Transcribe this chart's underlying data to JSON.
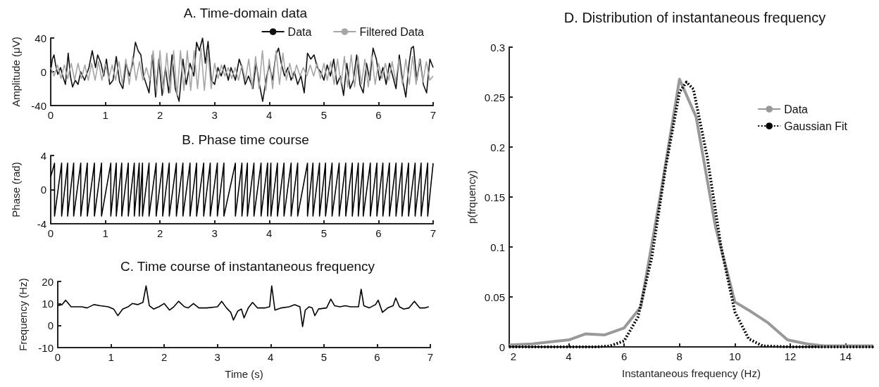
{
  "chart_data": [
    {
      "type": "line",
      "title": "A. Time-domain data",
      "ylabel": "Amplitude (μV)",
      "xlim": [
        0,
        7
      ],
      "xticks": [
        0,
        1,
        2,
        3,
        4,
        5,
        6,
        7
      ],
      "ylim": [
        -40,
        40
      ],
      "yticks": [
        -40,
        0,
        40
      ],
      "legend": "top",
      "series": [
        {
          "name": "Data",
          "color": "#111111",
          "x": [
            0,
            0.03,
            0.06,
            0.09,
            0.13,
            0.18,
            0.22,
            0.27,
            0.32,
            0.36,
            0.4,
            0.45,
            0.5,
            0.55,
            0.62,
            0.7,
            0.76,
            0.82,
            0.86,
            0.92,
            0.97,
            1.02,
            1.08,
            1.14,
            1.2,
            1.26,
            1.32,
            1.38,
            1.44,
            1.5,
            1.55,
            1.6,
            1.65,
            1.7,
            1.75,
            1.8,
            1.86,
            1.92,
            1.98,
            2.04,
            2.1,
            2.16,
            2.22,
            2.28,
            2.35,
            2.42,
            2.48,
            2.55,
            2.62,
            2.67,
            2.72,
            2.78,
            2.83,
            2.88,
            2.94,
            3.0,
            3.06,
            3.12,
            3.18,
            3.25,
            3.3,
            3.38,
            3.45,
            3.5,
            3.56,
            3.62,
            3.7,
            3.76,
            3.82,
            3.88,
            3.94,
            4.0,
            4.06,
            4.12,
            4.17,
            4.22,
            4.28,
            4.34,
            4.4,
            4.46,
            4.52,
            4.58,
            4.64,
            4.7,
            4.76,
            4.82,
            4.88,
            4.94,
            5.0,
            5.06,
            5.12,
            5.18,
            5.24,
            5.3,
            5.36,
            5.42,
            5.48,
            5.54,
            5.6,
            5.66,
            5.72,
            5.78,
            5.84,
            5.9,
            5.96,
            6.02,
            6.08,
            6.14,
            6.2,
            6.26,
            6.32,
            6.38,
            6.44,
            6.5,
            6.56,
            6.6,
            6.64,
            6.7,
            6.76,
            6.82,
            6.88,
            6.94,
            7.0
          ],
          "values": [
            0,
            15,
            20,
            8,
            -3,
            5,
            -5,
            -15,
            22,
            -5,
            -18,
            -10,
            -15,
            0,
            -10,
            5,
            25,
            5,
            20,
            10,
            -5,
            15,
            -15,
            -10,
            18,
            -12,
            -20,
            10,
            -5,
            10,
            35,
            25,
            20,
            -5,
            -15,
            -25,
            20,
            -30,
            15,
            -28,
            5,
            -25,
            20,
            -20,
            -35,
            15,
            -15,
            10,
            -5,
            35,
            25,
            40,
            10,
            36,
            -10,
            -15,
            5,
            -5,
            8,
            -10,
            5,
            -10,
            15,
            5,
            -15,
            -5,
            -20,
            10,
            -15,
            -35,
            -10,
            8,
            -10,
            20,
            28,
            10,
            -5,
            5,
            -10,
            0,
            -15,
            -5,
            -25,
            22,
            15,
            20,
            5,
            0,
            -10,
            8,
            -5,
            15,
            -15,
            -5,
            -28,
            10,
            -20,
            -10,
            20,
            -15,
            -25,
            10,
            -10,
            28,
            15,
            -10,
            5,
            -15,
            10,
            -5,
            -20,
            20,
            -10,
            -30,
            10,
            28,
            30,
            -10,
            15,
            -15,
            -25,
            15,
            5
          ]
        },
        {
          "name": "Filtered Data",
          "color": "#a6a6a6",
          "x": [
            0,
            0.0625,
            0.125,
            0.1875,
            0.25,
            0.3125,
            0.375,
            0.4375,
            0.5,
            0.5625,
            0.625,
            0.6875,
            0.75,
            0.8125,
            0.875,
            0.9375,
            1,
            1.0625,
            1.125,
            1.1875,
            1.25,
            1.3125,
            1.375,
            1.4375,
            1.5,
            1.5625,
            1.625,
            1.6875,
            1.75,
            1.8125,
            1.875,
            1.9375,
            2,
            2.0625,
            2.125,
            2.1875,
            2.25,
            2.3125,
            2.375,
            2.4375,
            2.5,
            2.5625,
            2.625,
            2.6875,
            2.75,
            2.8125,
            2.875,
            2.9375,
            3,
            3.0625,
            3.125,
            3.1875,
            3.25,
            3.3125,
            3.375,
            3.4375,
            3.5,
            3.5625,
            3.625,
            3.6875,
            3.75,
            3.8125,
            3.875,
            3.9375,
            4,
            4.0625,
            4.125,
            4.1875,
            4.25,
            4.3125,
            4.375,
            4.4375,
            4.5,
            4.5625,
            4.625,
            4.6875,
            4.75,
            4.8125,
            4.875,
            4.9375,
            5,
            5.0625,
            5.125,
            5.1875,
            5.25,
            5.3125,
            5.375,
            5.4375,
            5.5,
            5.5625,
            5.625,
            5.6875,
            5.75,
            5.8125,
            5.875,
            5.9375,
            6,
            6.0625,
            6.125,
            6.1875,
            6.25,
            6.3125,
            6.375,
            6.4375,
            6.5,
            6.5625,
            6.625,
            6.6875,
            6.75,
            6.8125,
            6.875,
            6.9375,
            7
          ],
          "values": [
            5,
            -5,
            8,
            -8,
            8,
            -8,
            10,
            -10,
            10,
            -8,
            8,
            -10,
            10,
            -10,
            12,
            -10,
            10,
            -8,
            8,
            -10,
            12,
            -15,
            15,
            -15,
            18,
            -10,
            12,
            -10,
            5,
            -10,
            25,
            -25,
            25,
            -25,
            22,
            -25,
            25,
            -28,
            25,
            -22,
            25,
            -22,
            25,
            -20,
            28,
            -22,
            25,
            -20,
            10,
            -8,
            8,
            -5,
            5,
            -8,
            5,
            -10,
            8,
            -10,
            15,
            -20,
            18,
            -20,
            25,
            -22,
            15,
            -20,
            25,
            -15,
            22,
            -10,
            10,
            -8,
            8,
            -5,
            5,
            -5,
            8,
            -5,
            10,
            -8,
            10,
            -10,
            12,
            -15,
            15,
            -15,
            18,
            -18,
            20,
            -18,
            18,
            -15,
            15,
            -18,
            20,
            -15,
            10,
            -8,
            10,
            -10,
            12,
            -12,
            15,
            -15,
            15,
            -15,
            18,
            -15,
            15,
            -12,
            12,
            -10,
            -5
          ]
        }
      ]
    },
    {
      "type": "line",
      "title": "B. Phase time course",
      "ylabel": "Phase (rad)",
      "xlim": [
        0,
        7
      ],
      "xticks": [
        0,
        1,
        2,
        3,
        4,
        5,
        6,
        7
      ],
      "ylim": [
        -4,
        4
      ],
      "yticks": [
        -4,
        0,
        4
      ],
      "series": [
        {
          "color": "#000000",
          "x": [
            0,
            0.07,
            0.07,
            0.2,
            0.2,
            0.31,
            0.31,
            0.42,
            0.42,
            0.55,
            0.55,
            0.67,
            0.67,
            0.8,
            0.8,
            0.93,
            0.93,
            1.1,
            1.1,
            1.2,
            1.2,
            1.3,
            1.3,
            1.42,
            1.42,
            1.53,
            1.53,
            1.62,
            1.62,
            1.68,
            1.68,
            1.8,
            1.8,
            1.93,
            1.93,
            2.05,
            2.05,
            2.17,
            2.17,
            2.3,
            2.3,
            2.42,
            2.42,
            2.55,
            2.55,
            2.67,
            2.67,
            2.8,
            2.8,
            2.92,
            2.92,
            3.05,
            3.05,
            3.17,
            3.17,
            3.38,
            3.38,
            3.5,
            3.5,
            3.6,
            3.6,
            3.72,
            3.72,
            3.85,
            3.85,
            3.97,
            3.97,
            4.03,
            4.03,
            4.15,
            4.15,
            4.27,
            4.27,
            4.4,
            4.4,
            4.52,
            4.52,
            4.7,
            4.7,
            4.8,
            4.8,
            4.92,
            4.92,
            5.03,
            5.03,
            5.15,
            5.15,
            5.28,
            5.28,
            5.4,
            5.4,
            5.52,
            5.52,
            5.63,
            5.63,
            5.72,
            5.72,
            5.85,
            5.85,
            5.97,
            5.97,
            6.08,
            6.08,
            6.2,
            6.2,
            6.32,
            6.32,
            6.43,
            6.43,
            6.55,
            6.55,
            6.67,
            6.67,
            6.78,
            6.78,
            6.9,
            6.9,
            7.0
          ],
          "values": [
            1.5,
            3.1,
            -3.1,
            3.1,
            -3.1,
            3.1,
            -3.1,
            3.1,
            -3.1,
            3.1,
            -3.1,
            3.1,
            -3.1,
            3.1,
            -3.1,
            3.1,
            -3.1,
            3.1,
            -3.1,
            3.1,
            -3.1,
            3.1,
            -3.1,
            3.1,
            -3.1,
            3.1,
            -3.1,
            3.1,
            -3.1,
            3.1,
            -3.1,
            3.1,
            -3.1,
            3.1,
            -3.1,
            3.1,
            -3.1,
            3.1,
            -3.1,
            3.1,
            -3.1,
            3.1,
            -3.1,
            3.1,
            -3.1,
            3.1,
            -3.1,
            3.1,
            -3.1,
            3.1,
            -3.1,
            3.1,
            -3.1,
            3.1,
            -3.1,
            3.1,
            -3.1,
            3.1,
            -3.1,
            3.1,
            -3.1,
            3.1,
            -3.1,
            3.1,
            -3.1,
            3.1,
            -3.1,
            3.1,
            -3.1,
            3.1,
            -3.1,
            3.1,
            -3.1,
            3.1,
            -3.1,
            3.1,
            -3.1,
            3.1,
            -3.1,
            3.1,
            -3.1,
            3.1,
            -3.1,
            3.1,
            -3.1,
            3.1,
            -3.1,
            3.1,
            -3.1,
            3.1,
            -3.1,
            3.1,
            -3.1,
            3.1,
            -3.1,
            3.1,
            -3.1,
            3.1,
            -3.1,
            3.1,
            -3.1,
            3.1,
            -3.1,
            3.1,
            -3.1,
            3.1,
            -3.1,
            3.1,
            -3.1,
            3.1,
            -3.1,
            3.1,
            -3.1,
            3.1,
            -3.1,
            3.1,
            -3.1,
            3.1
          ]
        }
      ]
    },
    {
      "type": "line",
      "title": "C. Time course of instantaneous frequency",
      "xlabel": "Time (s)",
      "ylabel": "Frequency (Hz)",
      "xlim": [
        0,
        7
      ],
      "xticks": [
        0,
        1,
        2,
        3,
        4,
        5,
        6,
        7
      ],
      "ylim": [
        -10,
        20
      ],
      "yticks": [
        -10,
        0,
        10,
        20
      ],
      "series": [
        {
          "color": "#000000",
          "x": [
            0,
            0.08,
            0.15,
            0.25,
            0.45,
            0.55,
            0.68,
            0.8,
            0.95,
            1.05,
            1.13,
            1.22,
            1.32,
            1.4,
            1.5,
            1.6,
            1.66,
            1.72,
            1.8,
            1.9,
            2.0,
            2.1,
            2.18,
            2.27,
            2.38,
            2.45,
            2.55,
            2.65,
            2.8,
            3.0,
            3.08,
            3.17,
            3.25,
            3.3,
            3.38,
            3.45,
            3.5,
            3.58,
            3.66,
            3.75,
            3.9,
            3.98,
            4.02,
            4.08,
            4.2,
            4.35,
            4.45,
            4.55,
            4.6,
            4.65,
            4.72,
            4.78,
            4.83,
            4.9,
            5.05,
            5.13,
            5.2,
            5.3,
            5.4,
            5.5,
            5.65,
            5.7,
            5.75,
            5.85,
            5.97,
            6.02,
            6.1,
            6.2,
            6.3,
            6.35,
            6.42,
            6.5,
            6.6,
            6.7,
            6.8,
            6.9,
            6.97
          ],
          "values": [
            9,
            9.5,
            11.5,
            8.5,
            8.5,
            8,
            9.5,
            9,
            8.5,
            7.5,
            4.5,
            7.5,
            8.5,
            10,
            9.5,
            10.5,
            18,
            9,
            7.5,
            8.5,
            10,
            7,
            8.5,
            11,
            8.5,
            8,
            10,
            8,
            8,
            8.5,
            11,
            8,
            6,
            2.5,
            6.5,
            7.5,
            3.5,
            8,
            10.5,
            8,
            8,
            8.5,
            18,
            7,
            8,
            8.5,
            9.5,
            8.5,
            -0.5,
            7,
            8.5,
            8,
            4.5,
            7.5,
            8,
            12,
            9,
            8.5,
            9,
            8.5,
            8.5,
            16.5,
            9,
            8,
            9.5,
            11.5,
            6,
            8,
            9,
            12.5,
            8.5,
            7.5,
            8,
            11,
            8,
            8,
            8.5
          ]
        }
      ]
    },
    {
      "type": "line",
      "title": "D. Distribution of instantaneous frequency",
      "xlabel": "Instantaneous frequency (Hz)",
      "ylabel": "p(frquency)",
      "xlim": [
        1.85,
        15
      ],
      "xticks": [
        2,
        4,
        6,
        8,
        10,
        12,
        14
      ],
      "ylim": [
        0,
        0.3
      ],
      "yticks": [
        0,
        0.05,
        0.1,
        0.15,
        0.2,
        0.25,
        0.3
      ],
      "legend": "top right",
      "series": [
        {
          "name": "Data",
          "color": "#999999",
          "x": [
            1.85,
            2.7,
            3.3,
            4,
            4.6,
            5.3,
            6,
            6.6,
            7.3,
            8,
            8.6,
            9.3,
            10,
            10.6,
            11.2,
            11.9,
            12.6,
            13.2,
            14,
            15
          ],
          "values": [
            0.002,
            0.003,
            0.005,
            0.007,
            0.013,
            0.012,
            0.019,
            0.04,
            0.15,
            0.268,
            0.23,
            0.12,
            0.045,
            0.035,
            0.024,
            0.007,
            0.003,
            0.001,
            0.001,
            0.001
          ]
        },
        {
          "name": "Gaussian Fit",
          "color": "#000000",
          "line_style": "dotted",
          "x": [
            1.85,
            5,
            5.5,
            6,
            6.5,
            7,
            7.5,
            8,
            8.25,
            8.5,
            9,
            9.5,
            10,
            10.5,
            11,
            12,
            15
          ],
          "values": [
            0,
            0,
            0.001,
            0.006,
            0.03,
            0.09,
            0.18,
            0.255,
            0.265,
            0.258,
            0.19,
            0.1,
            0.035,
            0.008,
            0.001,
            0,
            0
          ]
        }
      ]
    }
  ]
}
